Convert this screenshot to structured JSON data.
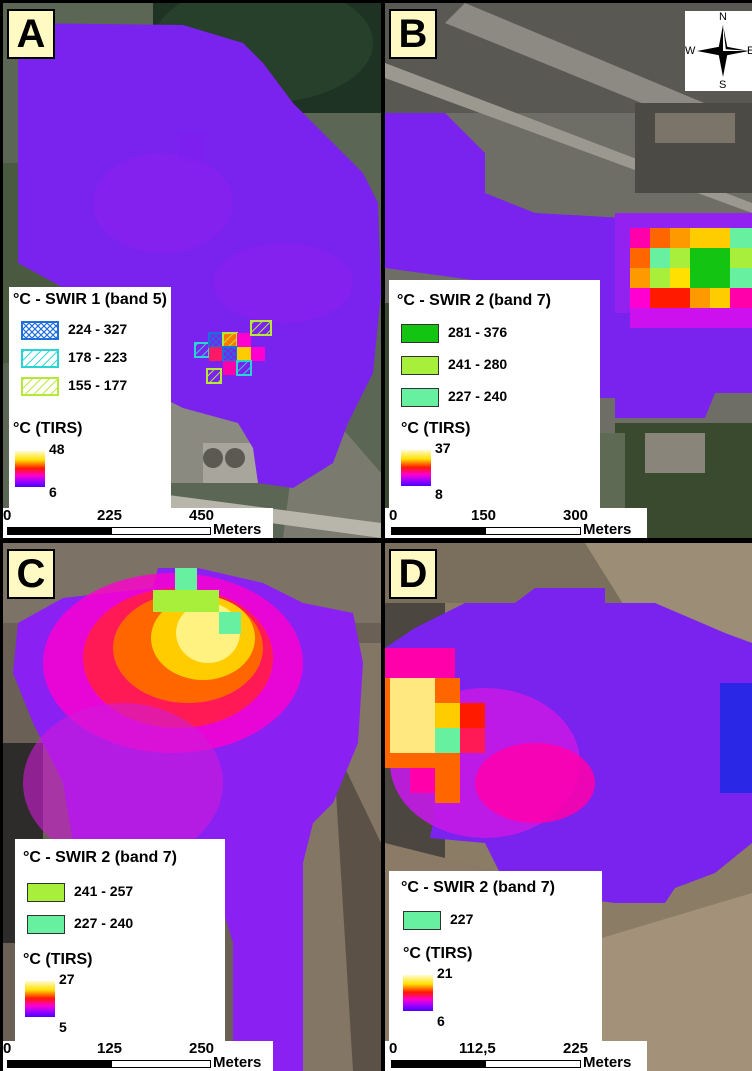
{
  "colors": {
    "swir_band5_high": "#1e6fd9",
    "swir_band5_mid": "#2ad4d4",
    "swir_band5_low": "#b6e838",
    "swir_band7_high": "#13c413",
    "swir_band7_mid": "#a8ef3c",
    "swir_band7_low": "#66f0a0",
    "tirs_gradient": [
      "#fffbd0",
      "#ffe000",
      "#ff1a00",
      "#ff00d0",
      "#9b00ff",
      "#4a00ff"
    ]
  },
  "compass": {
    "n": "N",
    "s": "S",
    "w": "W",
    "e": "E"
  },
  "panels": [
    {
      "letter": "A",
      "swir_title": "°C - SWIR 1 (band 5)",
      "swir_classes": [
        {
          "range": "224 - 327",
          "pattern": "crosshatch",
          "color_key": "swir_band5_high"
        },
        {
          "range": "178 - 223",
          "pattern": "hatch",
          "color_key": "swir_band5_mid"
        },
        {
          "range": "155 - 177",
          "pattern": "hatch",
          "color_key": "swir_band5_low"
        }
      ],
      "tirs_title": "°C (TIRS)",
      "tirs_max": "48",
      "tirs_min": "6",
      "scale": {
        "ticks": [
          "0",
          "225",
          "450"
        ],
        "units": "Meters"
      }
    },
    {
      "letter": "B",
      "swir_title": "°C - SWIR 2 (band 7)",
      "swir_classes": [
        {
          "range": "281 - 376",
          "pattern": "solid",
          "color_key": "swir_band7_high"
        },
        {
          "range": "241 - 280",
          "pattern": "solid",
          "color_key": "swir_band7_mid"
        },
        {
          "range": "227 - 240",
          "pattern": "solid",
          "color_key": "swir_band7_low"
        }
      ],
      "tirs_title": "°C (TIRS)",
      "tirs_max": "37",
      "tirs_min": "8",
      "scale": {
        "ticks": [
          "0",
          "150",
          "300"
        ],
        "units": "Meters"
      }
    },
    {
      "letter": "C",
      "swir_title": "°C - SWIR 2 (band 7)",
      "swir_classes": [
        {
          "range": "241 - 257",
          "pattern": "solid",
          "color_key": "swir_band7_mid"
        },
        {
          "range": "227 - 240",
          "pattern": "solid",
          "color_key": "swir_band7_low"
        }
      ],
      "tirs_title": "°C (TIRS)",
      "tirs_max": "27",
      "tirs_min": "5",
      "scale": {
        "ticks": [
          "0",
          "125",
          "250"
        ],
        "units": "Meters"
      }
    },
    {
      "letter": "D",
      "swir_title": "°C - SWIR 2 (band 7)",
      "swir_classes": [
        {
          "range": "227",
          "pattern": "solid",
          "color_key": "swir_band7_low"
        }
      ],
      "tirs_title": "°C (TIRS)",
      "tirs_max": "21",
      "tirs_min": "6",
      "scale": {
        "ticks": [
          "0",
          "112,5",
          "225"
        ],
        "units": "Meters"
      }
    }
  ]
}
